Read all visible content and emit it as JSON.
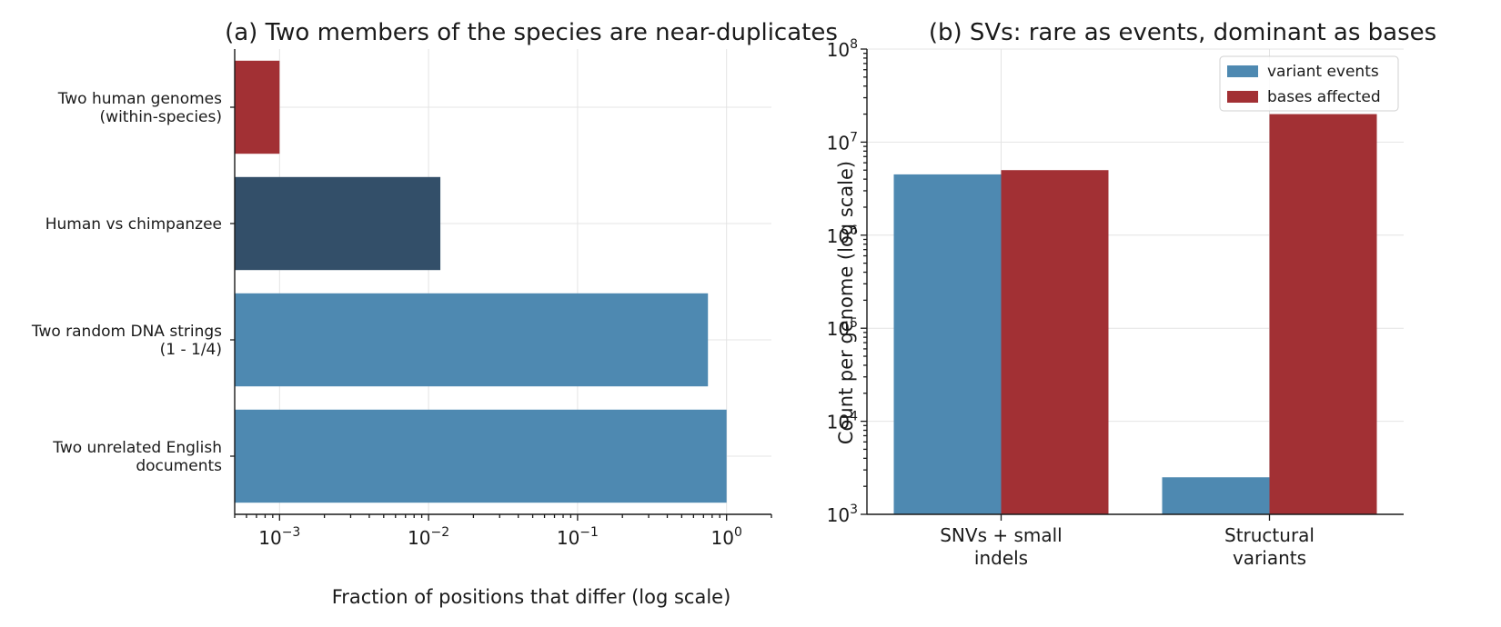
{
  "chart_data": [
    {
      "type": "bar",
      "orientation": "horizontal",
      "title": "(a) Two members of the species are near-duplicates",
      "xlabel": "Fraction of positions that differ (log scale)",
      "ylabel": "",
      "xscale": "log",
      "xlim": [
        0.0005,
        2
      ],
      "xticks": [
        0.001,
        0.01,
        0.1,
        1
      ],
      "xtick_labels": [
        {
          "base": "10",
          "exp": "−3"
        },
        {
          "base": "10",
          "exp": "−2"
        },
        {
          "base": "10",
          "exp": "−1"
        },
        {
          "base": "10",
          "exp": "0"
        }
      ],
      "grid": true,
      "categories": [
        {
          "lines": [
            "Two human genomes",
            "(within-species)"
          ],
          "value": 0.001,
          "color": "#a23034"
        },
        {
          "lines": [
            "Human vs chimpanzee"
          ],
          "value": 0.012,
          "color": "#334f69"
        },
        {
          "lines": [
            "Two random DNA strings",
            "(1 - 1/4)"
          ],
          "value": 0.75,
          "color": "#4e89b1"
        },
        {
          "lines": [
            "Two unrelated English",
            "documents"
          ],
          "value": 1.0,
          "color": "#4e89b1"
        }
      ]
    },
    {
      "type": "bar",
      "orientation": "vertical",
      "title": "(b) SVs: rare as events, dominant as bases",
      "xlabel": "",
      "ylabel": "Count per genome (log scale)",
      "yscale": "log",
      "ylim": [
        1000,
        100000000
      ],
      "yticks": [
        1000,
        10000,
        100000,
        1000000,
        10000000,
        100000000
      ],
      "ytick_labels": [
        {
          "base": "10",
          "exp": "3"
        },
        {
          "base": "10",
          "exp": "4"
        },
        {
          "base": "10",
          "exp": "5"
        },
        {
          "base": "10",
          "exp": "6"
        },
        {
          "base": "10",
          "exp": "7"
        },
        {
          "base": "10",
          "exp": "8"
        }
      ],
      "grid": true,
      "legend_position": "top-right",
      "categories": [
        {
          "lines": [
            "SNVs + small",
            "indels"
          ]
        },
        {
          "lines": [
            "Structural",
            "variants"
          ]
        }
      ],
      "series": [
        {
          "name": "variant events",
          "color": "#4e89b1",
          "values": [
            4500000,
            2500
          ]
        },
        {
          "name": "bases affected",
          "color": "#a23034",
          "values": [
            5000000,
            20000000
          ]
        }
      ]
    }
  ]
}
